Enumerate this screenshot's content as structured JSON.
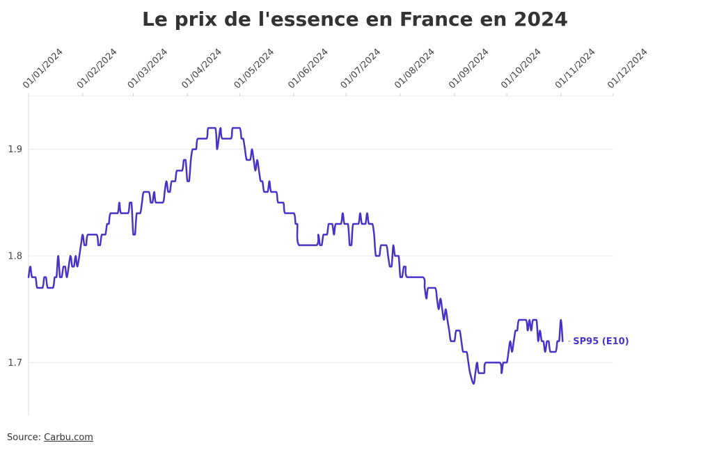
{
  "title": "Le prix de l'essence en France en 2024",
  "source": {
    "prefix": "Source:",
    "link_text": "Carbu.com"
  },
  "colors": {
    "line": "#4a32c8",
    "grid": "#ececec",
    "text": "#333333"
  },
  "chart_data": {
    "type": "line",
    "title": "Le prix de l'essence en France en 2024",
    "xlabel": "",
    "ylabel": "",
    "x_ticks": [
      "01/01/2024",
      "01/02/2024",
      "01/03/2024",
      "01/04/2024",
      "01/05/2024",
      "01/06/2024",
      "01/07/2024",
      "01/08/2024",
      "01/09/2024",
      "01/10/2024",
      "01/11/2024",
      "01/12/2024"
    ],
    "y_ticks": [
      "1.7",
      "1.8",
      "1.9"
    ],
    "xlim": [
      "2024-01-01",
      "2024-12-01"
    ],
    "ylim": [
      1.65,
      1.95
    ],
    "grid": true,
    "legend": "inline-end",
    "series": [
      {
        "name": "SP95 (E10)",
        "color": "#4a32c8",
        "points": [
          [
            "2024-01-01",
            1.78
          ],
          [
            "2024-01-02",
            1.79
          ],
          [
            "2024-01-03",
            1.78
          ],
          [
            "2024-01-05",
            1.78
          ],
          [
            "2024-01-06",
            1.77
          ],
          [
            "2024-01-09",
            1.77
          ],
          [
            "2024-01-10",
            1.78
          ],
          [
            "2024-01-11",
            1.78
          ],
          [
            "2024-01-12",
            1.77
          ],
          [
            "2024-01-15",
            1.77
          ],
          [
            "2024-01-16",
            1.78
          ],
          [
            "2024-01-17",
            1.78
          ],
          [
            "2024-01-18",
            1.8
          ],
          [
            "2024-01-19",
            1.78
          ],
          [
            "2024-01-20",
            1.78
          ],
          [
            "2024-01-21",
            1.79
          ],
          [
            "2024-01-22",
            1.79
          ],
          [
            "2024-01-23",
            1.78
          ],
          [
            "2024-01-25",
            1.8
          ],
          [
            "2024-01-26",
            1.79
          ],
          [
            "2024-01-27",
            1.79
          ],
          [
            "2024-01-28",
            1.8
          ],
          [
            "2024-01-29",
            1.79
          ],
          [
            "2024-01-31",
            1.81
          ],
          [
            "2024-02-01",
            1.82
          ],
          [
            "2024-02-02",
            1.81
          ],
          [
            "2024-02-03",
            1.81
          ],
          [
            "2024-02-04",
            1.82
          ],
          [
            "2024-02-09",
            1.82
          ],
          [
            "2024-02-10",
            1.81
          ],
          [
            "2024-02-11",
            1.81
          ],
          [
            "2024-02-12",
            1.82
          ],
          [
            "2024-02-14",
            1.82
          ],
          [
            "2024-02-15",
            1.83
          ],
          [
            "2024-02-16",
            1.83
          ],
          [
            "2024-02-17",
            1.84
          ],
          [
            "2024-02-21",
            1.84
          ],
          [
            "2024-02-22",
            1.85
          ],
          [
            "2024-02-23",
            1.84
          ],
          [
            "2024-02-27",
            1.84
          ],
          [
            "2024-02-28",
            1.85
          ],
          [
            "2024-02-29",
            1.85
          ],
          [
            "2024-03-01",
            1.82
          ],
          [
            "2024-03-02",
            1.82
          ],
          [
            "2024-03-03",
            1.84
          ],
          [
            "2024-03-05",
            1.84
          ],
          [
            "2024-03-06",
            1.85
          ],
          [
            "2024-03-07",
            1.86
          ],
          [
            "2024-03-10",
            1.86
          ],
          [
            "2024-03-11",
            1.85
          ],
          [
            "2024-03-12",
            1.85
          ],
          [
            "2024-03-13",
            1.86
          ],
          [
            "2024-03-14",
            1.85
          ],
          [
            "2024-03-18",
            1.85
          ],
          [
            "2024-03-19",
            1.86
          ],
          [
            "2024-03-20",
            1.87
          ],
          [
            "2024-03-21",
            1.86
          ],
          [
            "2024-03-22",
            1.86
          ],
          [
            "2024-03-23",
            1.87
          ],
          [
            "2024-03-25",
            1.87
          ],
          [
            "2024-03-26",
            1.88
          ],
          [
            "2024-03-29",
            1.88
          ],
          [
            "2024-03-30",
            1.89
          ],
          [
            "2024-03-31",
            1.89
          ],
          [
            "2024-04-01",
            1.87
          ],
          [
            "2024-04-02",
            1.87
          ],
          [
            "2024-04-03",
            1.89
          ],
          [
            "2024-04-04",
            1.9
          ],
          [
            "2024-04-06",
            1.9
          ],
          [
            "2024-04-07",
            1.91
          ],
          [
            "2024-04-12",
            1.91
          ],
          [
            "2024-04-13",
            1.92
          ],
          [
            "2024-04-17",
            1.92
          ],
          [
            "2024-04-18",
            1.9
          ],
          [
            "2024-04-19",
            1.91
          ],
          [
            "2024-04-20",
            1.92
          ],
          [
            "2024-04-21",
            1.91
          ],
          [
            "2024-04-26",
            1.91
          ],
          [
            "2024-04-27",
            1.92
          ],
          [
            "2024-05-01",
            1.92
          ],
          [
            "2024-05-02",
            1.91
          ],
          [
            "2024-05-03",
            1.91
          ],
          [
            "2024-05-04",
            1.9
          ],
          [
            "2024-05-05",
            1.89
          ],
          [
            "2024-05-07",
            1.89
          ],
          [
            "2024-05-08",
            1.9
          ],
          [
            "2024-05-09",
            1.89
          ],
          [
            "2024-05-10",
            1.88
          ],
          [
            "2024-05-11",
            1.89
          ],
          [
            "2024-05-12",
            1.88
          ],
          [
            "2024-05-13",
            1.87
          ],
          [
            "2024-05-14",
            1.87
          ],
          [
            "2024-05-15",
            1.86
          ],
          [
            "2024-05-17",
            1.86
          ],
          [
            "2024-05-18",
            1.87
          ],
          [
            "2024-05-19",
            1.86
          ],
          [
            "2024-05-22",
            1.86
          ],
          [
            "2024-05-23",
            1.85
          ],
          [
            "2024-05-26",
            1.85
          ],
          [
            "2024-05-27",
            1.84
          ],
          [
            "2024-06-01",
            1.84
          ],
          [
            "2024-06-02",
            1.83
          ],
          [
            "2024-06-03",
            1.83
          ],
          [
            "2024-06-04",
            1.81
          ],
          [
            "2024-06-14",
            1.81
          ],
          [
            "2024-06-15",
            1.82
          ],
          [
            "2024-06-16",
            1.81
          ],
          [
            "2024-06-17",
            1.81
          ],
          [
            "2024-06-18",
            1.82
          ],
          [
            "2024-06-20",
            1.82
          ],
          [
            "2024-06-21",
            1.83
          ],
          [
            "2024-06-23",
            1.83
          ],
          [
            "2024-06-24",
            1.82
          ],
          [
            "2024-06-25",
            1.83
          ],
          [
            "2024-06-28",
            1.83
          ],
          [
            "2024-06-29",
            1.84
          ],
          [
            "2024-06-30",
            1.83
          ],
          [
            "2024-07-02",
            1.83
          ],
          [
            "2024-07-03",
            1.81
          ],
          [
            "2024-07-04",
            1.81
          ],
          [
            "2024-07-05",
            1.83
          ],
          [
            "2024-07-08",
            1.83
          ],
          [
            "2024-07-09",
            1.84
          ],
          [
            "2024-07-10",
            1.83
          ],
          [
            "2024-07-12",
            1.83
          ],
          [
            "2024-07-13",
            1.84
          ],
          [
            "2024-07-14",
            1.83
          ],
          [
            "2024-07-16",
            1.83
          ],
          [
            "2024-07-17",
            1.82
          ],
          [
            "2024-07-18",
            1.8
          ],
          [
            "2024-07-20",
            1.8
          ],
          [
            "2024-07-21",
            1.81
          ],
          [
            "2024-07-24",
            1.81
          ],
          [
            "2024-07-25",
            1.8
          ],
          [
            "2024-07-26",
            1.79
          ],
          [
            "2024-07-27",
            1.79
          ],
          [
            "2024-07-28",
            1.81
          ],
          [
            "2024-07-29",
            1.8
          ],
          [
            "2024-07-31",
            1.8
          ],
          [
            "2024-08-01",
            1.78
          ],
          [
            "2024-08-02",
            1.78
          ],
          [
            "2024-08-03",
            1.79
          ],
          [
            "2024-08-04",
            1.79
          ],
          [
            "2024-08-05",
            1.78
          ],
          [
            "2024-08-14",
            1.78
          ],
          [
            "2024-08-15",
            1.77
          ],
          [
            "2024-08-16",
            1.76
          ],
          [
            "2024-08-17",
            1.77
          ],
          [
            "2024-08-21",
            1.77
          ],
          [
            "2024-08-22",
            1.76
          ],
          [
            "2024-08-23",
            1.75
          ],
          [
            "2024-08-24",
            1.76
          ],
          [
            "2024-08-25",
            1.75
          ],
          [
            "2024-08-26",
            1.74
          ],
          [
            "2024-08-27",
            1.75
          ],
          [
            "2024-08-28",
            1.74
          ],
          [
            "2024-08-29",
            1.73
          ],
          [
            "2024-08-30",
            1.72
          ],
          [
            "2024-09-01",
            1.72
          ],
          [
            "2024-09-02",
            1.73
          ],
          [
            "2024-09-04",
            1.73
          ],
          [
            "2024-09-05",
            1.72
          ],
          [
            "2024-09-06",
            1.71
          ],
          [
            "2024-09-08",
            1.71
          ],
          [
            "2024-09-09",
            1.7
          ],
          [
            "2024-09-10",
            1.69
          ],
          [
            "2024-09-12",
            1.68
          ],
          [
            "2024-09-13",
            1.69
          ],
          [
            "2024-09-14",
            1.7
          ],
          [
            "2024-09-15",
            1.69
          ],
          [
            "2024-09-18",
            1.69
          ],
          [
            "2024-09-19",
            1.7
          ],
          [
            "2024-09-27",
            1.7
          ],
          [
            "2024-09-28",
            1.69
          ],
          [
            "2024-09-29",
            1.7
          ],
          [
            "2024-10-01",
            1.7
          ],
          [
            "2024-10-02",
            1.71
          ],
          [
            "2024-10-03",
            1.72
          ],
          [
            "2024-10-04",
            1.71
          ],
          [
            "2024-10-05",
            1.72
          ],
          [
            "2024-10-06",
            1.73
          ],
          [
            "2024-10-07",
            1.73
          ],
          [
            "2024-10-08",
            1.74
          ],
          [
            "2024-10-12",
            1.74
          ],
          [
            "2024-10-13",
            1.73
          ],
          [
            "2024-10-14",
            1.74
          ],
          [
            "2024-10-15",
            1.73
          ],
          [
            "2024-10-16",
            1.74
          ],
          [
            "2024-10-18",
            1.74
          ],
          [
            "2024-10-19",
            1.72
          ],
          [
            "2024-10-20",
            1.73
          ],
          [
            "2024-10-21",
            1.72
          ],
          [
            "2024-10-22",
            1.72
          ],
          [
            "2024-10-23",
            1.71
          ],
          [
            "2024-10-24",
            1.72
          ],
          [
            "2024-10-25",
            1.72
          ],
          [
            "2024-10-26",
            1.71
          ],
          [
            "2024-10-29",
            1.71
          ],
          [
            "2024-10-30",
            1.72
          ],
          [
            "2024-10-31",
            1.72
          ],
          [
            "2024-11-01",
            1.74
          ],
          [
            "2024-11-02",
            1.72
          ]
        ]
      }
    ]
  }
}
